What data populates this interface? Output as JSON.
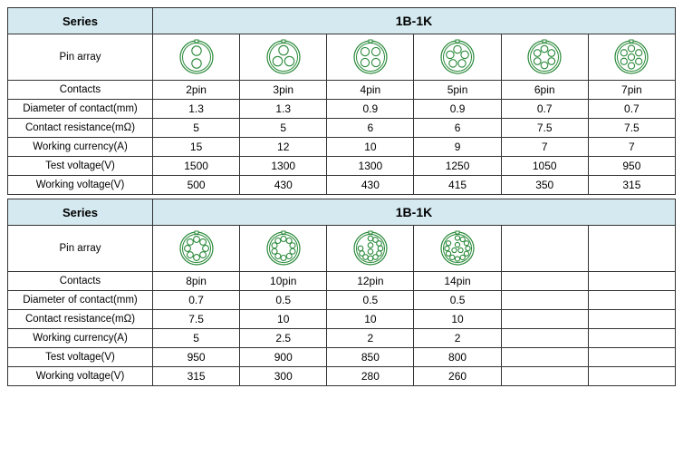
{
  "labels": {
    "series": "Series",
    "pin_array": "Pin array",
    "contacts": "Contacts",
    "diameter": "Diameter of contact(mm)",
    "resistance": "Contact resistance(mΩ)",
    "current": "Working currency(A)",
    "test_voltage": "Test voltage(V)",
    "working_voltage": "Working voltage(V)"
  },
  "colors": {
    "header_bg": "#d4e9f0",
    "border": "#333333",
    "icon_stroke": "#2a8a3a",
    "icon_fill": "#ffffff",
    "text": "#000000"
  },
  "fonts": {
    "label_size_pt": 12,
    "header_size_pt": 13,
    "cell_size_pt": 12
  },
  "table1": {
    "series_value": "1B-1K",
    "num_cols": 6,
    "cols": [
      {
        "pins": 2,
        "contacts": "2pin",
        "diameter": "1.3",
        "resistance": "5",
        "current": "15",
        "test_v": "1500",
        "work_v": "500"
      },
      {
        "pins": 3,
        "contacts": "3pin",
        "diameter": "1.3",
        "resistance": "5",
        "current": "12",
        "test_v": "1300",
        "work_v": "430"
      },
      {
        "pins": 4,
        "contacts": "4pin",
        "diameter": "0.9",
        "resistance": "6",
        "current": "10",
        "test_v": "1300",
        "work_v": "430"
      },
      {
        "pins": 5,
        "contacts": "5pin",
        "diameter": "0.9",
        "resistance": "6",
        "current": "9",
        "test_v": "1250",
        "work_v": "415"
      },
      {
        "pins": 6,
        "contacts": "6pin",
        "diameter": "0.7",
        "resistance": "7.5",
        "current": "7",
        "test_v": "1050",
        "work_v": "350"
      },
      {
        "pins": 7,
        "contacts": "7pin",
        "diameter": "0.7",
        "resistance": "7.5",
        "current": "7",
        "test_v": "950",
        "work_v": "315"
      }
    ]
  },
  "table2": {
    "series_value": "1B-1K",
    "num_cols": 6,
    "cols": [
      {
        "pins": 8,
        "contacts": "8pin",
        "diameter": "0.7",
        "resistance": "7.5",
        "current": "5",
        "test_v": "950",
        "work_v": "315"
      },
      {
        "pins": 10,
        "contacts": "10pin",
        "diameter": "0.5",
        "resistance": "10",
        "current": "2.5",
        "test_v": "900",
        "work_v": "300"
      },
      {
        "pins": 12,
        "contacts": "12pin",
        "diameter": "0.5",
        "resistance": "10",
        "current": "2",
        "test_v": "850",
        "work_v": "280"
      },
      {
        "pins": 14,
        "contacts": "14pin",
        "diameter": "0.5",
        "resistance": "10",
        "current": "2",
        "test_v": "800",
        "work_v": "260"
      },
      {
        "pins": null,
        "contacts": "",
        "diameter": "",
        "resistance": "",
        "current": "",
        "test_v": "",
        "work_v": ""
      },
      {
        "pins": null,
        "contacts": "",
        "diameter": "",
        "resistance": "",
        "current": "",
        "test_v": "",
        "work_v": ""
      }
    ]
  },
  "icon_layouts": {
    "2": {
      "outer_r": 18,
      "pin_r": 5.2,
      "positions": [
        [
          0,
          -7
        ],
        [
          0,
          7
        ]
      ],
      "notch": true
    },
    "3": {
      "outer_r": 18,
      "pin_r": 5.2,
      "positions": [
        [
          0,
          -7.5
        ],
        [
          -6.5,
          4.5
        ],
        [
          6.5,
          4.5
        ]
      ],
      "notch": true
    },
    "4": {
      "outer_r": 18,
      "pin_r": 4.6,
      "positions": [
        [
          -6,
          -6
        ],
        [
          6,
          -6
        ],
        [
          -6,
          6
        ],
        [
          6,
          6
        ]
      ],
      "notch": true
    },
    "5": {
      "outer_r": 18,
      "pin_r": 4.2,
      "positions": [
        [
          0,
          -8.5
        ],
        [
          -8.1,
          -2.6
        ],
        [
          8.1,
          -2.6
        ],
        [
          -5,
          6.9
        ],
        [
          5,
          6.9
        ]
      ],
      "notch": true
    },
    "6": {
      "outer_r": 18,
      "pin_r": 3.8,
      "positions": [
        [
          0,
          -9
        ],
        [
          7.8,
          -4.5
        ],
        [
          7.8,
          4.5
        ],
        [
          0,
          9
        ],
        [
          -7.8,
          4.5
        ],
        [
          -7.8,
          -4.5
        ]
      ],
      "notch": true
    },
    "7": {
      "outer_r": 18,
      "pin_r": 3.6,
      "positions": [
        [
          0,
          0
        ],
        [
          0,
          -9.5
        ],
        [
          8.2,
          -4.75
        ],
        [
          8.2,
          4.75
        ],
        [
          0,
          9.5
        ],
        [
          -8.2,
          4.75
        ],
        [
          -8.2,
          -4.75
        ]
      ],
      "notch": true
    },
    "8": {
      "outer_r": 18,
      "pin_r": 3.4,
      "positions": [
        [
          0,
          -10
        ],
        [
          7.07,
          -7.07
        ],
        [
          10,
          0
        ],
        [
          7.07,
          7.07
        ],
        [
          0,
          10
        ],
        [
          -7.07,
          7.07
        ],
        [
          -10,
          0
        ],
        [
          -7.07,
          -7.07
        ]
      ],
      "notch": true
    },
    "10": {
      "outer_r": 18,
      "pin_r": 3.0,
      "positions": [
        [
          0,
          -10.5
        ],
        [
          6.17,
          -8.5
        ],
        [
          9.99,
          -3.25
        ],
        [
          9.99,
          3.25
        ],
        [
          6.17,
          8.5
        ],
        [
          0,
          10.5
        ],
        [
          -6.17,
          8.5
        ],
        [
          -9.99,
          3.25
        ],
        [
          -9.99,
          -3.25
        ],
        [
          -6.17,
          -8.5
        ]
      ],
      "notch": true
    },
    "12": {
      "outer_r": 18,
      "pin_r": 2.8,
      "positions": [
        [
          0,
          -3.5
        ],
        [
          0,
          3.5
        ],
        [
          0,
          -11
        ],
        [
          5.5,
          -9.5
        ],
        [
          9.5,
          -5.5
        ],
        [
          11,
          0
        ],
        [
          9.5,
          5.5
        ],
        [
          5.5,
          9.5
        ],
        [
          0,
          11
        ],
        [
          -5.5,
          9.5
        ],
        [
          -9.5,
          5.5
        ],
        [
          -11,
          0
        ]
      ],
      "notch": true
    },
    "14": {
      "outer_r": 18,
      "pin_r": 2.6,
      "positions": [
        [
          0,
          -4
        ],
        [
          -3.5,
          2
        ],
        [
          3.5,
          2
        ],
        [
          0,
          -11.5
        ],
        [
          5.75,
          -9.96
        ],
        [
          9.96,
          -5.75
        ],
        [
          11.5,
          0
        ],
        [
          9.96,
          5.75
        ],
        [
          5.75,
          9.96
        ],
        [
          0,
          11.5
        ],
        [
          -5.75,
          9.96
        ],
        [
          -9.96,
          5.75
        ],
        [
          -11.5,
          0
        ],
        [
          -9.96,
          -5.75
        ]
      ],
      "notch": true
    }
  }
}
